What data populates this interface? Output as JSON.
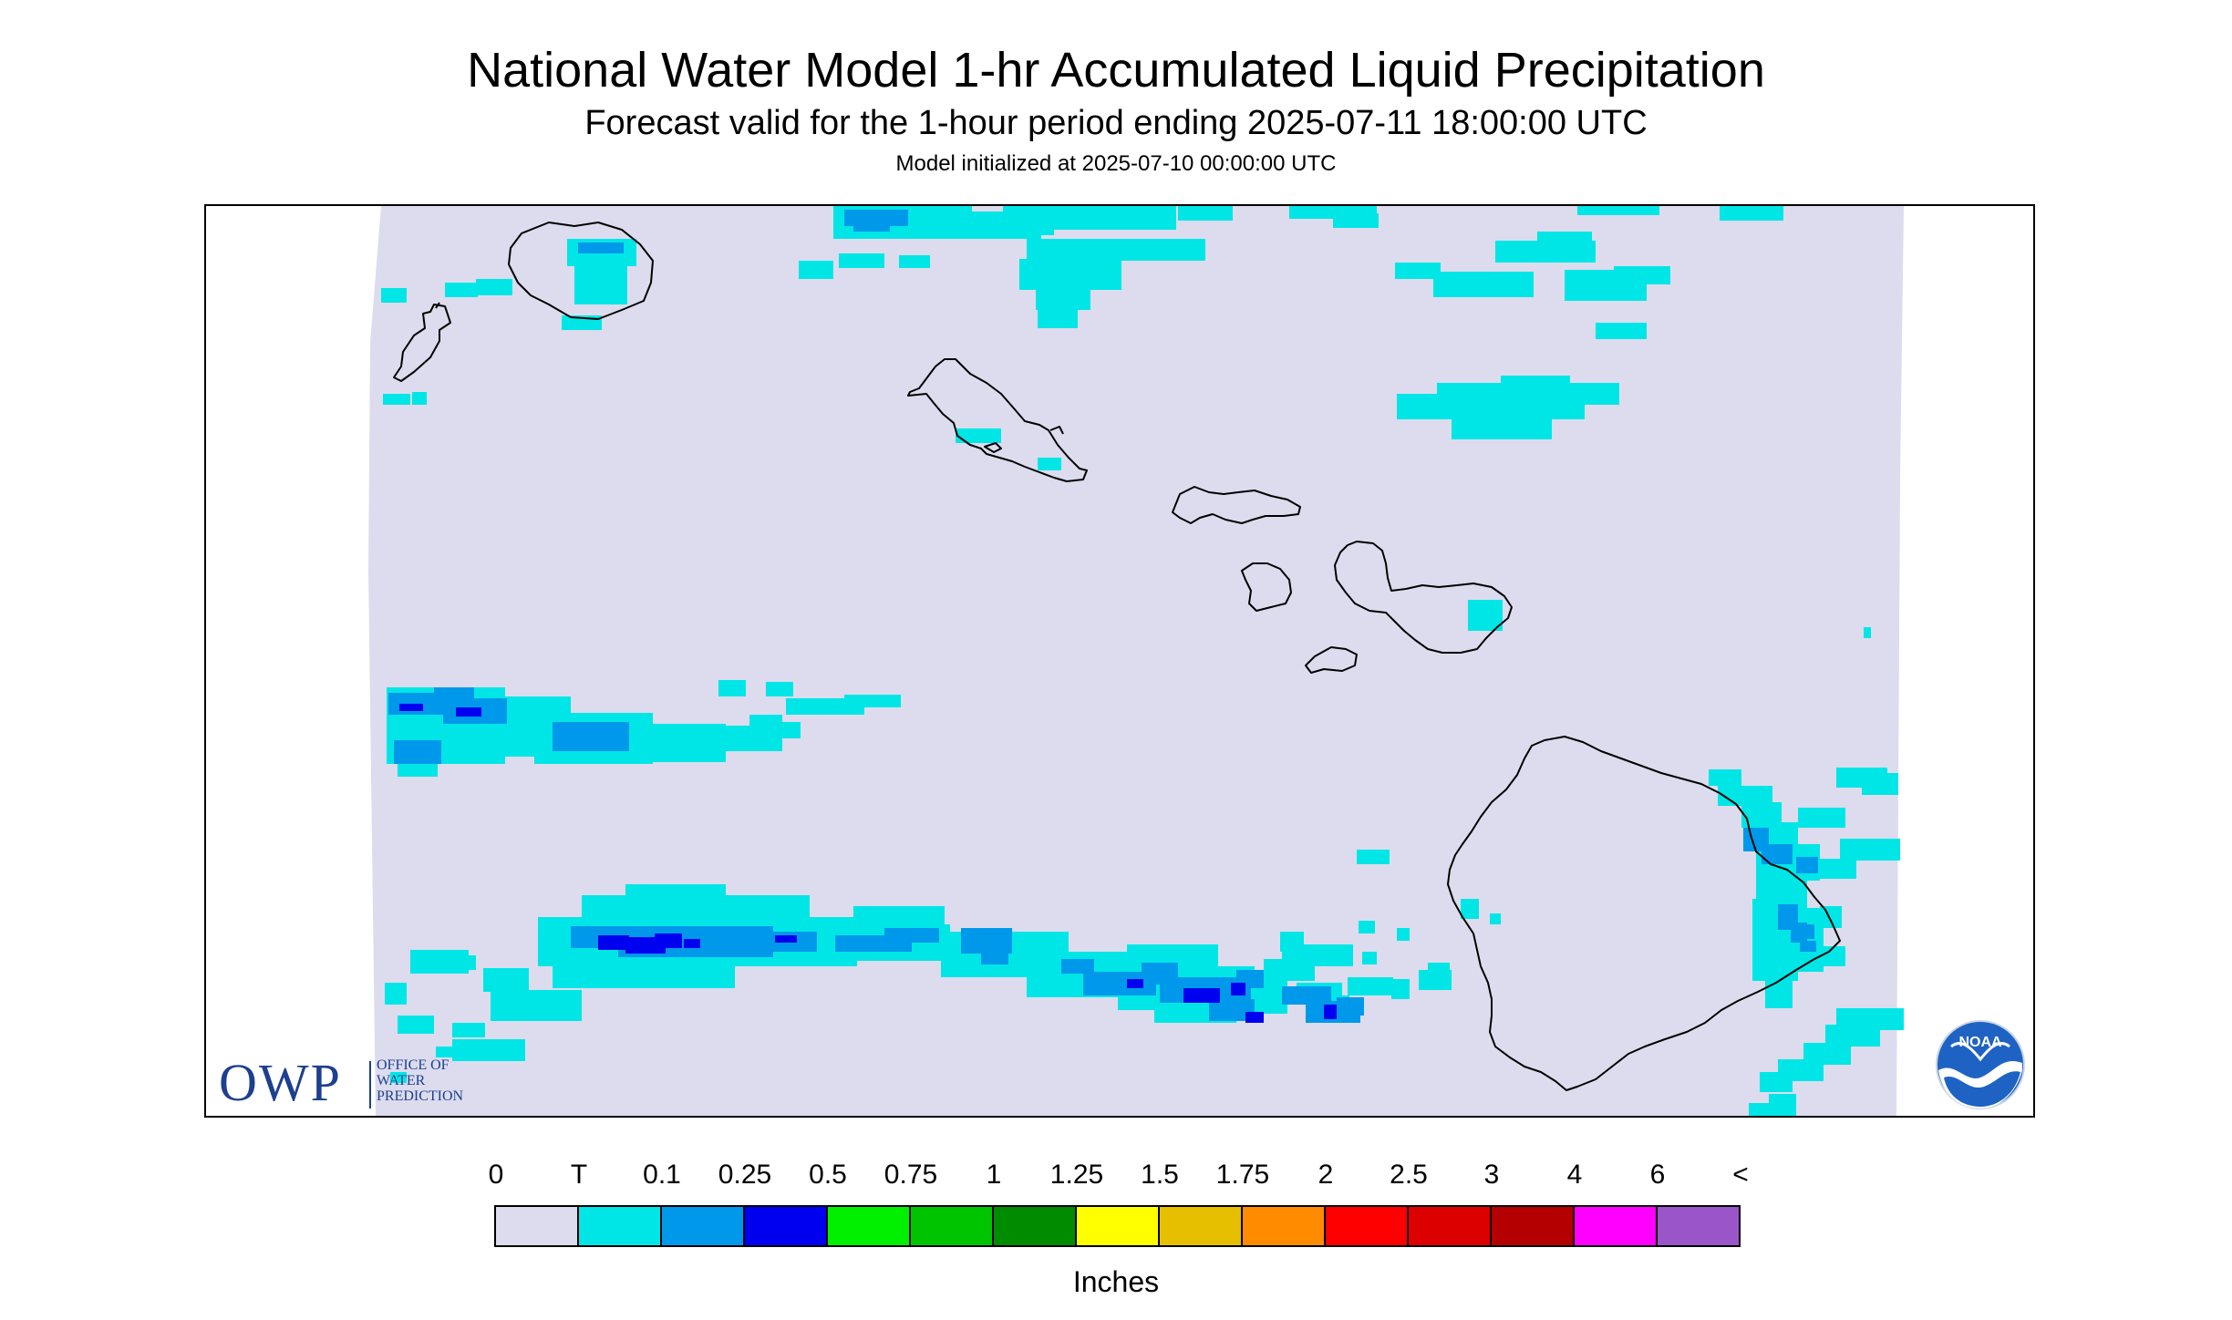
{
  "title": "National Water Model 1-hr Accumulated Liquid Precipitation",
  "subtitle": "Forecast valid for the 1-hour period ending 2025-07-11 18:00:00 UTC",
  "init_line": "Model initialized at 2025-07-10 00:00:00 UTC",
  "colors": {
    "background_field": "#dcdcee",
    "coastline": "#000000",
    "owp_blue": "#1d3f8f",
    "noaa_blue": "#1e63c4"
  },
  "owp_logo": {
    "letters": "OWP",
    "lines": [
      "OFFICE OF",
      "WATER",
      "PREDICTION"
    ]
  },
  "noaa_logo": {
    "text": "NOAA"
  },
  "legend": {
    "label": "Inches",
    "ticks": [
      "0",
      "T",
      "0.1",
      "0.25",
      "0.5",
      "0.75",
      "1",
      "1.25",
      "1.5",
      "1.75",
      "2",
      "2.5",
      "3",
      "4",
      "6",
      "<"
    ],
    "bins": [
      {
        "from": "0",
        "to": "T",
        "color": "#dcdcee"
      },
      {
        "from": "T",
        "to": "0.1",
        "color": "#00e6e6"
      },
      {
        "from": "0.1",
        "to": "0.25",
        "color": "#0098ea"
      },
      {
        "from": "0.25",
        "to": "0.5",
        "color": "#0000f0"
      },
      {
        "from": "0.5",
        "to": "0.75",
        "color": "#00f000"
      },
      {
        "from": "0.75",
        "to": "1",
        "color": "#00c400"
      },
      {
        "from": "1",
        "to": "1.25",
        "color": "#008c00"
      },
      {
        "from": "1.25",
        "to": "1.5",
        "color": "#ffff00"
      },
      {
        "from": "1.5",
        "to": "1.75",
        "color": "#e6c000"
      },
      {
        "from": "1.75",
        "to": "2",
        "color": "#ff8c00"
      },
      {
        "from": "2",
        "to": "2.5",
        "color": "#ff0000"
      },
      {
        "from": "2.5",
        "to": "3",
        "color": "#dc0000"
      },
      {
        "from": "3",
        "to": "4",
        "color": "#b40000"
      },
      {
        "from": "4",
        "to": "6",
        "color": "#ff00ff"
      },
      {
        "from": "6",
        "to": "<",
        "color": "#9a55c8"
      }
    ]
  },
  "map": {
    "region": "Hawaiian Islands",
    "islands": [
      "Niihau",
      "Kauai",
      "Oahu",
      "Molokai",
      "Lanai",
      "Maui",
      "Kahoolawe",
      "Hawaii"
    ],
    "precip_areas": [
      {
        "area": "Kauai interior",
        "max_bin": "T-0.1"
      },
      {
        "area": "Band west of main islands",
        "max_bin": "0.25-0.5"
      },
      {
        "area": "Band south of Oahu-Maui",
        "max_bin": "0.25-0.5"
      },
      {
        "area": "Windward Hawaii (Hilo)",
        "max_bin": "0.1-0.25"
      },
      {
        "area": "Northern offshore cells",
        "max_bin": "T-0.1"
      },
      {
        "area": "East Maui",
        "max_bin": "T-0.1"
      }
    ]
  }
}
